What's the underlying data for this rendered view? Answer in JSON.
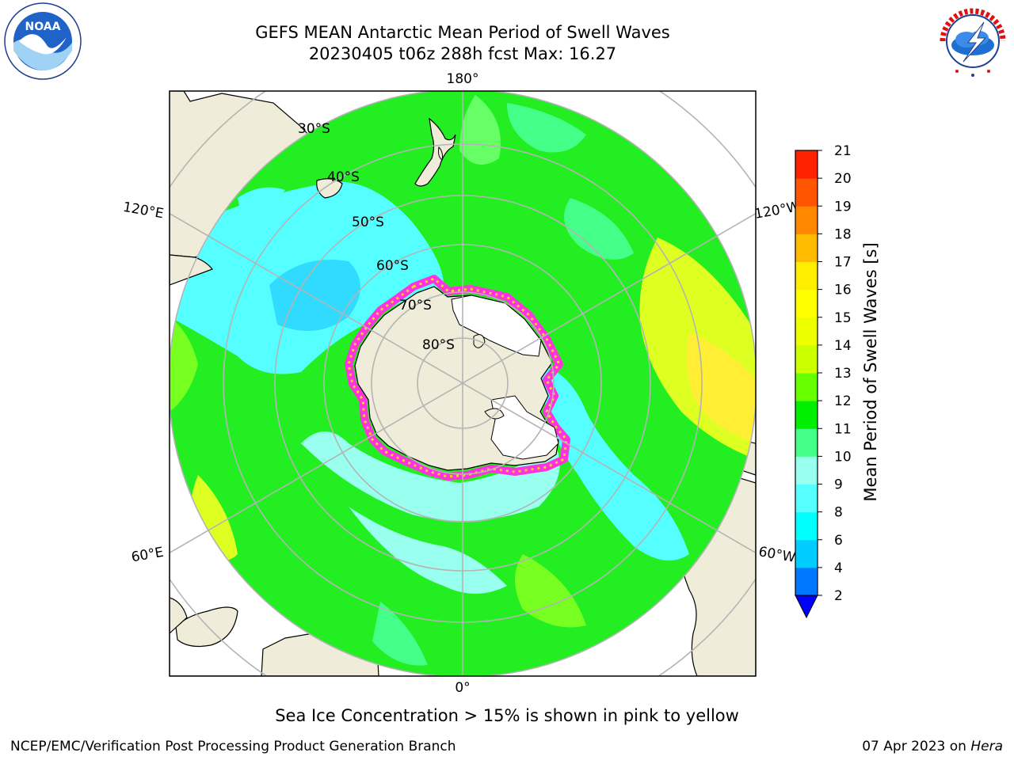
{
  "title": {
    "line1": "GEFS MEAN Antarctic Mean Period of Swell Waves",
    "line2": "20230405 t06z 288h fcst   Max: 16.27"
  },
  "logos": {
    "left": "NOAA",
    "left_ring": "NATIONAL OCEANIC AND ATMOSPHERIC ADMINISTRATION · U.S. DEPARTMENT OF COMMERCE",
    "right_ring": "NATIONAL WEATHER SERVICE"
  },
  "map": {
    "longitude_labels": {
      "top": "180°",
      "bottom": "0°",
      "upper_left": "120°E",
      "lower_left": "60°E",
      "upper_right": "120°W",
      "lower_right": "60°W"
    },
    "latitude_labels": [
      "30°S",
      "40°S",
      "50°S",
      "60°S",
      "70°S",
      "80°S"
    ],
    "colors": {
      "land": "#efedda",
      "ice_edge": "#ff33dd",
      "ice_edge_inner": "#ffcc33",
      "graticule": "#b4b4b4"
    }
  },
  "colorbar": {
    "label": "Mean Period of Swell Waves [s]",
    "ticks": [
      "2",
      "4",
      "6",
      "8",
      "9",
      "10",
      "11",
      "12",
      "13",
      "14",
      "15",
      "16",
      "17",
      "18",
      "19",
      "20",
      "21"
    ],
    "colors": [
      "#0077ff",
      "#00ccff",
      "#00ffff",
      "#55ffff",
      "#99ffee",
      "#44ff88",
      "#00ee00",
      "#66ff00",
      "#ccff00",
      "#eeff00",
      "#ffff00",
      "#ffee00",
      "#ffbb00",
      "#ff8800",
      "#ff5500",
      "#ff2200"
    ],
    "under_color": "#0000ff"
  },
  "note": "Sea Ice Concentration > 15% is shown in pink to yellow",
  "footer": {
    "credit": "NCEP/EMC/Verification Post Processing Product Generation Branch",
    "date_prefix": "07 Apr 2023 on ",
    "machine": "Hera"
  }
}
